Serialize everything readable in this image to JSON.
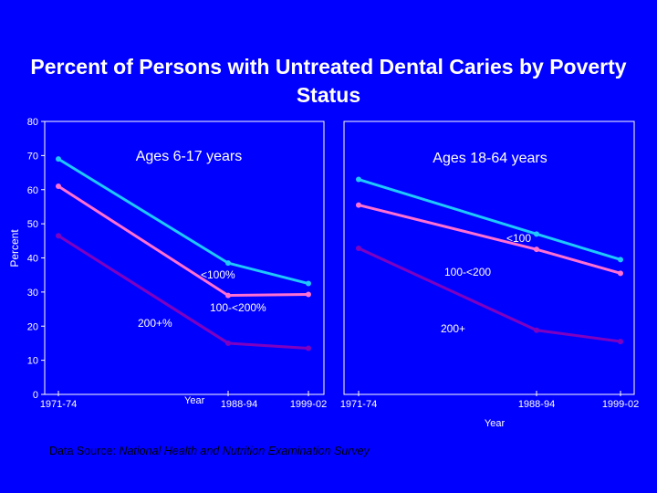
{
  "title": {
    "line1": "Percent of Persons with Untreated Dental Caries by   Poverty",
    "line2": "Status"
  },
  "source": {
    "prefix": "Data Source: ",
    "name": "National Health and Nutrition Examination Survey"
  },
  "colors": {
    "background": "#0000ff",
    "lt100": "#1ec8ff",
    "r100_200": "#ff70d0",
    "r200plus": "#8000c0"
  },
  "chart_data": [
    {
      "type": "line",
      "panel_title": "Ages 6-17 years",
      "ylabel": "Percent",
      "xlabel": "Year",
      "ylim": [
        0,
        80
      ],
      "y_ticks": [
        0,
        10,
        20,
        30,
        40,
        50,
        60,
        70,
        80
      ],
      "categories": [
        "1971-74",
        "1988-94",
        "1999-02"
      ],
      "series": [
        {
          "name": "<100%",
          "color": "#1ec8ff",
          "values": [
            69,
            38.5,
            32.5
          ]
        },
        {
          "name": "100-<200%",
          "color": "#ff70d0",
          "values": [
            61,
            29,
            29.3
          ]
        },
        {
          "name": "200+%",
          "color": "#8000c0",
          "values": [
            46.5,
            15,
            13.5
          ]
        }
      ]
    },
    {
      "type": "line",
      "panel_title": "Ages 18-64 years",
      "xlabel": "Year",
      "ylim": [
        0,
        80
      ],
      "categories": [
        "1971-74",
        "1988-94",
        "1999-02"
      ],
      "series": [
        {
          "name": "<100",
          "color": "#1ec8ff",
          "values": [
            63,
            47,
            39.5
          ]
        },
        {
          "name": "100-<200",
          "color": "#ff70d0",
          "values": [
            55.5,
            42.5,
            35.5
          ]
        },
        {
          "name": "200+",
          "color": "#8000c0",
          "values": [
            42.8,
            18.8,
            15.5
          ]
        }
      ]
    }
  ]
}
